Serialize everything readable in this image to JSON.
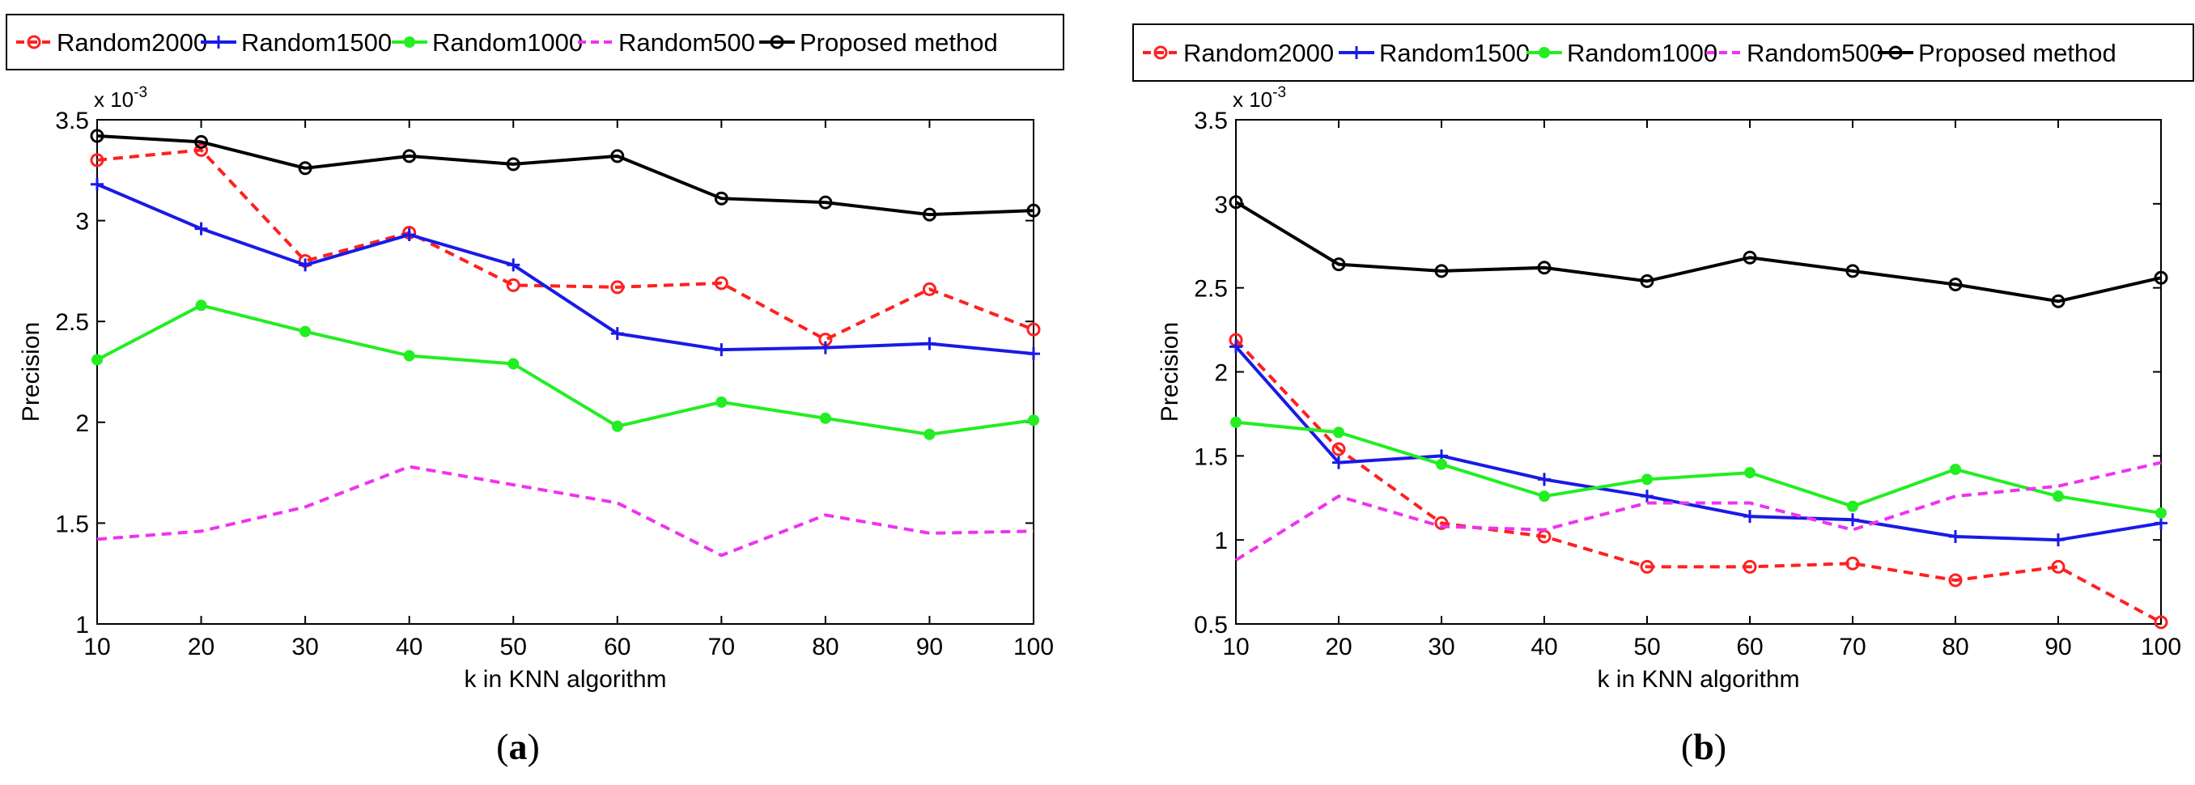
{
  "panels": [
    {
      "caption_letter": "a",
      "chart_data": {
        "type": "line",
        "title": "",
        "xlabel": "k in KNN algorithm",
        "ylabel": "Precision",
        "y_multiplier": "x 10",
        "y_exponent": "-3",
        "x": [
          10,
          20,
          30,
          40,
          50,
          60,
          70,
          80,
          90,
          100
        ],
        "xlim": [
          10,
          100
        ],
        "ylim": [
          1,
          3.5
        ],
        "x_ticks": [
          "10",
          "20",
          "30",
          "40",
          "50",
          "60",
          "70",
          "80",
          "90",
          "100"
        ],
        "y_ticks": [
          "1",
          "1.5",
          "2",
          "2.5",
          "3",
          "3.5"
        ],
        "y_tick_values": [
          1,
          1.5,
          2,
          2.5,
          3,
          3.5
        ],
        "grid": false,
        "legend_position": "top-outside",
        "series": [
          {
            "name": "Random2000",
            "color": "#ff2020",
            "style": "dashed",
            "marker": "circle",
            "values": [
              3.3,
              3.35,
              2.8,
              2.94,
              2.68,
              2.67,
              2.69,
              2.41,
              2.66,
              2.46
            ]
          },
          {
            "name": "Random1500",
            "color": "#1a1ae6",
            "style": "solid",
            "marker": "plus",
            "values": [
              3.18,
              2.96,
              2.78,
              2.93,
              2.78,
              2.44,
              2.36,
              2.37,
              2.39,
              2.34
            ]
          },
          {
            "name": "Random1000",
            "color": "#22ee22",
            "style": "solid",
            "marker": "dot",
            "values": [
              2.31,
              2.58,
              2.45,
              2.33,
              2.29,
              1.98,
              2.1,
              2.02,
              1.94,
              2.01
            ]
          },
          {
            "name": "Random500",
            "color": "#ee33ee",
            "style": "dashed",
            "marker": "none",
            "values": [
              1.42,
              1.46,
              1.58,
              1.78,
              1.69,
              1.6,
              1.34,
              1.54,
              1.45,
              1.46
            ]
          },
          {
            "name": "Proposed method",
            "color": "#000000",
            "style": "solid",
            "marker": "circle",
            "values": [
              3.42,
              3.39,
              3.26,
              3.32,
              3.28,
              3.32,
              3.11,
              3.09,
              3.03,
              3.05
            ]
          }
        ]
      }
    },
    {
      "caption_letter": "b",
      "chart_data": {
        "type": "line",
        "title": "",
        "xlabel": "k in KNN algorithm",
        "ylabel": "Precision",
        "y_multiplier": "x 10",
        "y_exponent": "-3",
        "x": [
          10,
          20,
          30,
          40,
          50,
          60,
          70,
          80,
          90,
          100
        ],
        "xlim": [
          10,
          100
        ],
        "ylim": [
          0.5,
          3.5
        ],
        "x_ticks": [
          "10",
          "20",
          "30",
          "40",
          "50",
          "60",
          "70",
          "80",
          "90",
          "100"
        ],
        "y_ticks": [
          "0.5",
          "1",
          "1.5",
          "2",
          "2.5",
          "3",
          "3.5"
        ],
        "y_tick_values": [
          0.5,
          1,
          1.5,
          2,
          2.5,
          3,
          3.5
        ],
        "grid": false,
        "legend_position": "top-outside",
        "series": [
          {
            "name": "Random2000",
            "color": "#ff2020",
            "style": "dashed",
            "marker": "circle",
            "values": [
              2.19,
              1.54,
              1.1,
              1.02,
              0.84,
              0.84,
              0.86,
              0.76,
              0.84,
              0.51
            ]
          },
          {
            "name": "Random1500",
            "color": "#1a1ae6",
            "style": "solid",
            "marker": "plus",
            "values": [
              2.15,
              1.46,
              1.5,
              1.36,
              1.26,
              1.14,
              1.12,
              1.02,
              1.0,
              1.1
            ]
          },
          {
            "name": "Random1000",
            "color": "#22ee22",
            "style": "solid",
            "marker": "dot",
            "values": [
              1.7,
              1.64,
              1.45,
              1.26,
              1.36,
              1.4,
              1.2,
              1.42,
              1.26,
              1.16
            ]
          },
          {
            "name": "Random500",
            "color": "#ee33ee",
            "style": "dashed",
            "marker": "none",
            "values": [
              0.88,
              1.26,
              1.08,
              1.06,
              1.22,
              1.22,
              1.06,
              1.26,
              1.32,
              1.46
            ]
          },
          {
            "name": "Proposed method",
            "color": "#000000",
            "style": "solid",
            "marker": "circle",
            "values": [
              3.01,
              2.64,
              2.6,
              2.62,
              2.54,
              2.68,
              2.6,
              2.52,
              2.42,
              2.56
            ]
          }
        ]
      }
    }
  ]
}
